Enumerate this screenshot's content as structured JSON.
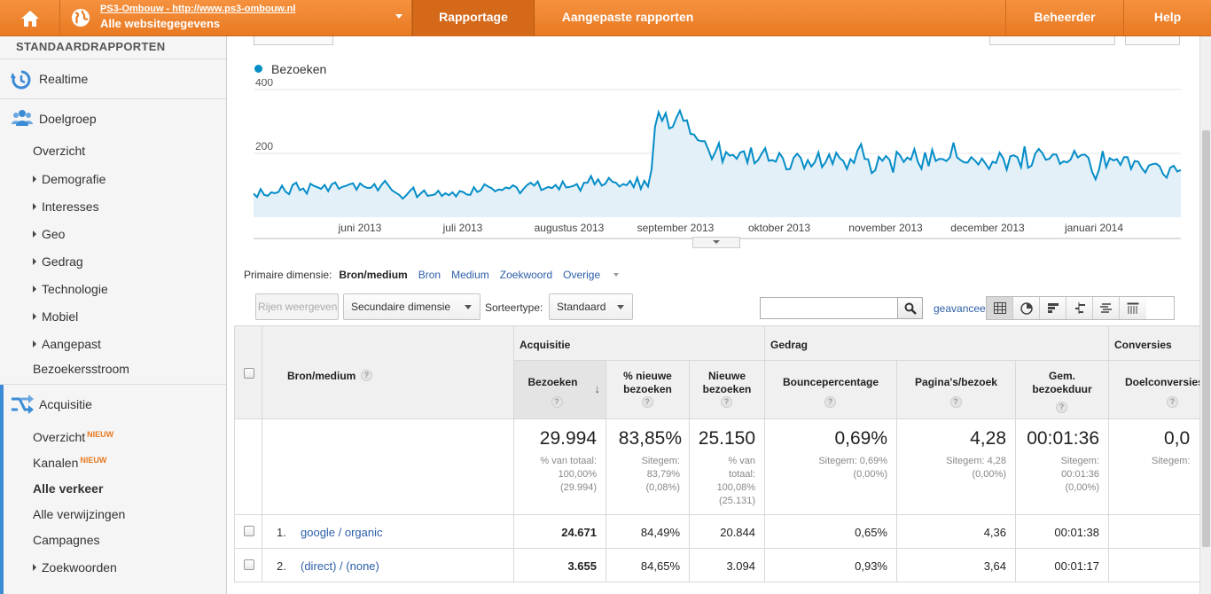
{
  "topbar": {
    "account_line1": "PS3-Ombouw - http://www.ps3-ombouw.nl",
    "account_line2": "Alle websitegegevens",
    "tabs": [
      {
        "label": "Rapportage"
      },
      {
        "label": "Aangepaste rapporten"
      },
      {
        "label": "Beheerder"
      },
      {
        "label": "Help"
      }
    ]
  },
  "sidebar": {
    "heading": "STANDAARDRAPPORTEN",
    "realtime": "Realtime",
    "doelgroep": "Doelgroep",
    "doelgroep_items": [
      "Overzicht",
      "Demografie",
      "Interesses",
      "Geo",
      "Gedrag",
      "Technologie",
      "Mobiel",
      "Aangepast",
      "Bezoekersstroom"
    ],
    "acquisitie": "Acquisitie",
    "acquisitie_items": [
      "Overzicht",
      "Kanalen",
      "Alle verkeer",
      "Alle verwijzingen",
      "Campagnes",
      "Zoekwoorden"
    ],
    "nieuw_badge": "NIEUW"
  },
  "chart": {
    "legend": "Bezoeken",
    "y_ticks": [
      "400",
      "200"
    ],
    "x_labels": [
      "juni 2013",
      "juli 2013",
      "augustus 2013",
      "september 2013",
      "oktober 2013",
      "november 2013",
      "december 2013",
      "januari 2014"
    ]
  },
  "chart_data": {
    "type": "area",
    "title": "",
    "xlabel": "",
    "ylabel": "",
    "ylim": [
      0,
      400
    ],
    "series": [
      {
        "name": "Bezoeken",
        "color": "#058dc7",
        "values": [
          74,
          63,
          88,
          70,
          67,
          78,
          75,
          79,
          99,
          80,
          72,
          101,
          108,
          85,
          90,
          74,
          105,
          98,
          94,
          89,
          101,
          82,
          103,
          109,
          89,
          95,
          98,
          103,
          106,
          86,
          106,
          97,
          92,
          92,
          104,
          84,
          101,
          114,
          99,
          84,
          77,
          70,
          58,
          69,
          82,
          93,
          63,
          74,
          84,
          67,
          69,
          71,
          83,
          66,
          75,
          69,
          78,
          65,
          82,
          79,
          71,
          70,
          94,
          79,
          85,
          103,
          96,
          91,
          81,
          87,
          85,
          93,
          90,
          100,
          94,
          75,
          89,
          101,
          108,
          99,
          112,
          85,
          90,
          95,
          91,
          101,
          87,
          112,
          93,
          95,
          98,
          104,
          83,
          108,
          108,
          129,
          103,
          119,
          99,
          105,
          123,
          111,
          108,
          96,
          104,
          100,
          114,
          94,
          124,
          89,
          114,
          96,
          149,
          284,
          329,
          302,
          326,
          278,
          283,
          311,
          334,
          302,
          304,
          261,
          259,
          242,
          238,
          238,
          212,
          182,
          205,
          232,
          173,
          204,
          193,
          195,
          183,
          203,
          207,
          171,
          218,
          169,
          179,
          199,
          216,
          177,
          179,
          174,
          201,
          185,
          150,
          151,
          186,
          199,
          186,
          153,
          179,
          159,
          173,
          203,
          157,
          172,
          197,
          167,
          202,
          185,
          176,
          151,
          182,
          170,
          209,
          229,
          183,
          181,
          138,
          147,
          189,
          177,
          192,
          180,
          140,
          205,
          193,
          173,
          187,
          180,
          213,
          173,
          152,
          203,
          160,
          211,
          176,
          183,
          182,
          176,
          187,
          234,
          188,
          179,
          172,
          171,
          188,
          178,
          165,
          184,
          168,
          151,
          174,
          170,
          202,
          185,
          149,
          191,
          194,
          188,
          157,
          222,
          155,
          162,
          199,
          214,
          201,
          180,
          183,
          197,
          196,
          167,
          175,
          172,
          181,
          208,
          187,
          195,
          196,
          186,
          143,
          119,
          150,
          207,
          157,
          185,
          178,
          182,
          164,
          188,
          188,
          151,
          176,
          174,
          154,
          140,
          162,
          166,
          168,
          160,
          135,
          124,
          155,
          161,
          143,
          148
        ]
      }
    ]
  },
  "dimensions": {
    "label": "Primaire dimensie:",
    "active": "Bron/medium",
    "links": [
      "Bron",
      "Medium",
      "Zoekwoord",
      "Overige"
    ]
  },
  "toolbar": {
    "rows_button": "Rijen weergeven",
    "secondary_dim": "Secundaire dimensie",
    "sort_label": "Sorteertype:",
    "sort_value": "Standaard",
    "search_placeholder": "",
    "advanced": "geavanceerd"
  },
  "table": {
    "groups": [
      "Acquisitie",
      "Gedrag",
      "Conversies"
    ],
    "dim_header": "Bron/medium",
    "columns": [
      "Bezoeken",
      "% nieuwe bezoeken",
      "Nieuwe bezoeken",
      "Bouncepercentage",
      "Pagina's/bezoek",
      "Gem. bezoekduur",
      "Doelconversies"
    ],
    "totals": [
      {
        "big": "29.994",
        "small": "% van totaal:\n100,00%\n(29.994)"
      },
      {
        "big": "83,85%",
        "small": "Sitegem:\n83,79%\n(0,08%)"
      },
      {
        "big": "25.150",
        "small": "% van\ntotaal:\n100,08%\n(25.131)"
      },
      {
        "big": "0,69%",
        "small": "Sitegem: 0,69%\n(0,00%)"
      },
      {
        "big": "4,28",
        "small": "Sitegem: 4,28\n(0,00%)"
      },
      {
        "big": "00:01:36",
        "small": "Sitegem:\n00:01:36\n(0,00%)"
      },
      {
        "big": "0,0",
        "small": "Sitegem:"
      }
    ],
    "rows": [
      {
        "num": "1.",
        "source": "google / organic",
        "values": [
          "24.671",
          "84,49%",
          "20.844",
          "0,65%",
          "4,36",
          "00:01:38",
          ""
        ]
      },
      {
        "num": "2.",
        "source": "(direct) / (none)",
        "values": [
          "3.655",
          "84,65%",
          "3.094",
          "0,93%",
          "3,64",
          "00:01:17",
          ""
        ]
      }
    ]
  }
}
